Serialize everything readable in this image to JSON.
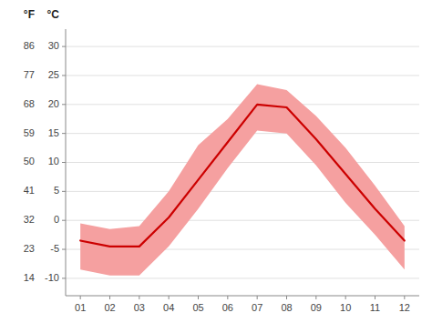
{
  "chart_data": {
    "type": "line",
    "categories": [
      "01",
      "02",
      "03",
      "04",
      "05",
      "06",
      "07",
      "08",
      "09",
      "10",
      "11",
      "12"
    ],
    "series": [
      {
        "type": "band",
        "color": "#f5a0a0",
        "low": [
          -8.5,
          -9.5,
          -9.5,
          -4.5,
          2.0,
          9.0,
          15.5,
          15.0,
          9.5,
          3.0,
          -2.5,
          -8.5
        ],
        "high": [
          -0.5,
          -1.5,
          -1.0,
          5.0,
          13.0,
          17.5,
          23.5,
          22.5,
          18.0,
          12.5,
          6.0,
          -1.0
        ]
      },
      {
        "type": "line",
        "color": "#cc0000",
        "values": [
          -3.5,
          -4.5,
          -4.5,
          0.5,
          7.0,
          13.5,
          20.0,
          19.5,
          14.0,
          8.0,
          2.0,
          -3.5
        ]
      }
    ],
    "ylabel": "°C",
    "ylim": [
      -13,
      33
    ],
    "yticks": [
      -10,
      -5,
      0,
      5,
      10,
      15,
      20,
      25,
      30
    ],
    "y2label": "°F",
    "y2lim": [
      8.6,
      91.4
    ],
    "y2ticks": [
      14,
      23,
      32,
      41,
      50,
      59,
      68,
      77,
      86
    ],
    "grid": true
  }
}
